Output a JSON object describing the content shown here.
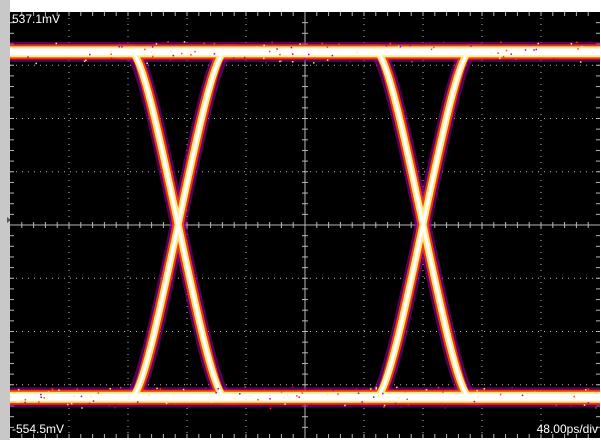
{
  "chart_data": {
    "type": "eye-diagram",
    "y_top_label": "537.1mV",
    "y_bottom_label": "-554.5mV",
    "time_scale_label": "48.00ps/div",
    "ylim": [
      -554.5,
      537.1
    ],
    "divisions": {
      "x": 10,
      "y": 8
    },
    "grid": true,
    "high_level_mV": 435,
    "low_level_mV": -450,
    "crossing_level_mV": 0,
    "crossings_div": [
      2.85,
      7.0
    ],
    "bit_period_div": 4.15,
    "transition_width_div": 1.6,
    "colors": {
      "background": "#000000",
      "grid": "#b8b8b8",
      "core": "#ffffff",
      "mid": "#ffee88",
      "outer": "#ff4400",
      "halo": "#a000a0"
    }
  }
}
